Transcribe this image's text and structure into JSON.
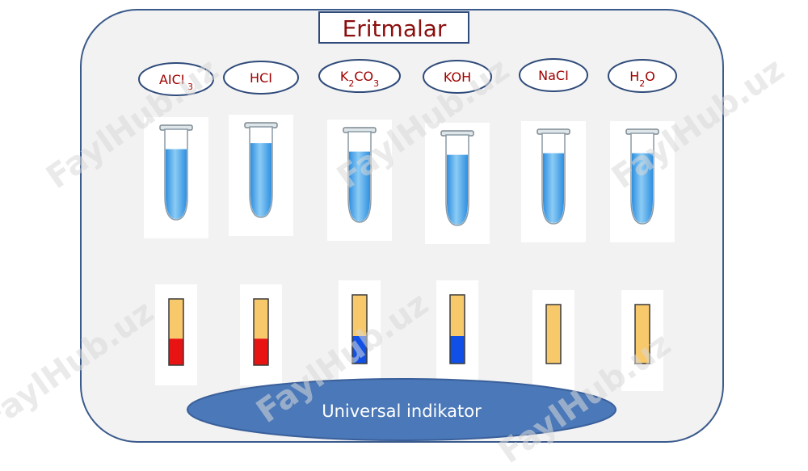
{
  "title": "Eritmalar",
  "solutions": [
    {
      "formula": "AICI",
      "sub": "3",
      "liquid_level": 0.78,
      "strip_bottom_color": "#e81313",
      "strip_split": 0.6
    },
    {
      "formula": "HCI",
      "sub": "",
      "liquid_level": 0.82,
      "strip_bottom_color": "#e81313",
      "strip_split": 0.6
    },
    {
      "formula": "K2CO3",
      "parts": [
        [
          "K",
          ""
        ],
        [
          "2",
          "sub"
        ],
        [
          "CO",
          ""
        ],
        [
          "3",
          "sub"
        ]
      ],
      "liquid_level": 0.78,
      "strip_bottom_color": "#1050e6",
      "strip_split": 0.6
    },
    {
      "formula": "KOH",
      "sub": "",
      "liquid_level": 0.78,
      "strip_bottom_color": "#1050e6",
      "strip_split": 0.6
    },
    {
      "formula": "NaCI",
      "sub": "",
      "liquid_level": 0.78,
      "strip_bottom_color": null,
      "strip_split": 1.0
    },
    {
      "formula": "H2O",
      "parts": [
        [
          "H",
          ""
        ],
        [
          "2",
          "sub"
        ],
        [
          "O",
          ""
        ]
      ],
      "liquid_level": 0.78,
      "strip_bottom_color": null,
      "strip_split": 1.0
    }
  ],
  "indicator_label": "Universal indikator",
  "watermark_text": "FaylHub.uz",
  "colors": {
    "board_fill": "#f2f2f2",
    "board_stroke": "#3a5a8c",
    "title_color": "#8b0d0d",
    "label_color": "#a00000",
    "ellipse_stroke": "#2e4a7a",
    "liquid": "#4aa3e8",
    "strip_top": "#f8c96b",
    "indicator_fill": "#4a78b8",
    "indicator_text": "#ffffff"
  }
}
